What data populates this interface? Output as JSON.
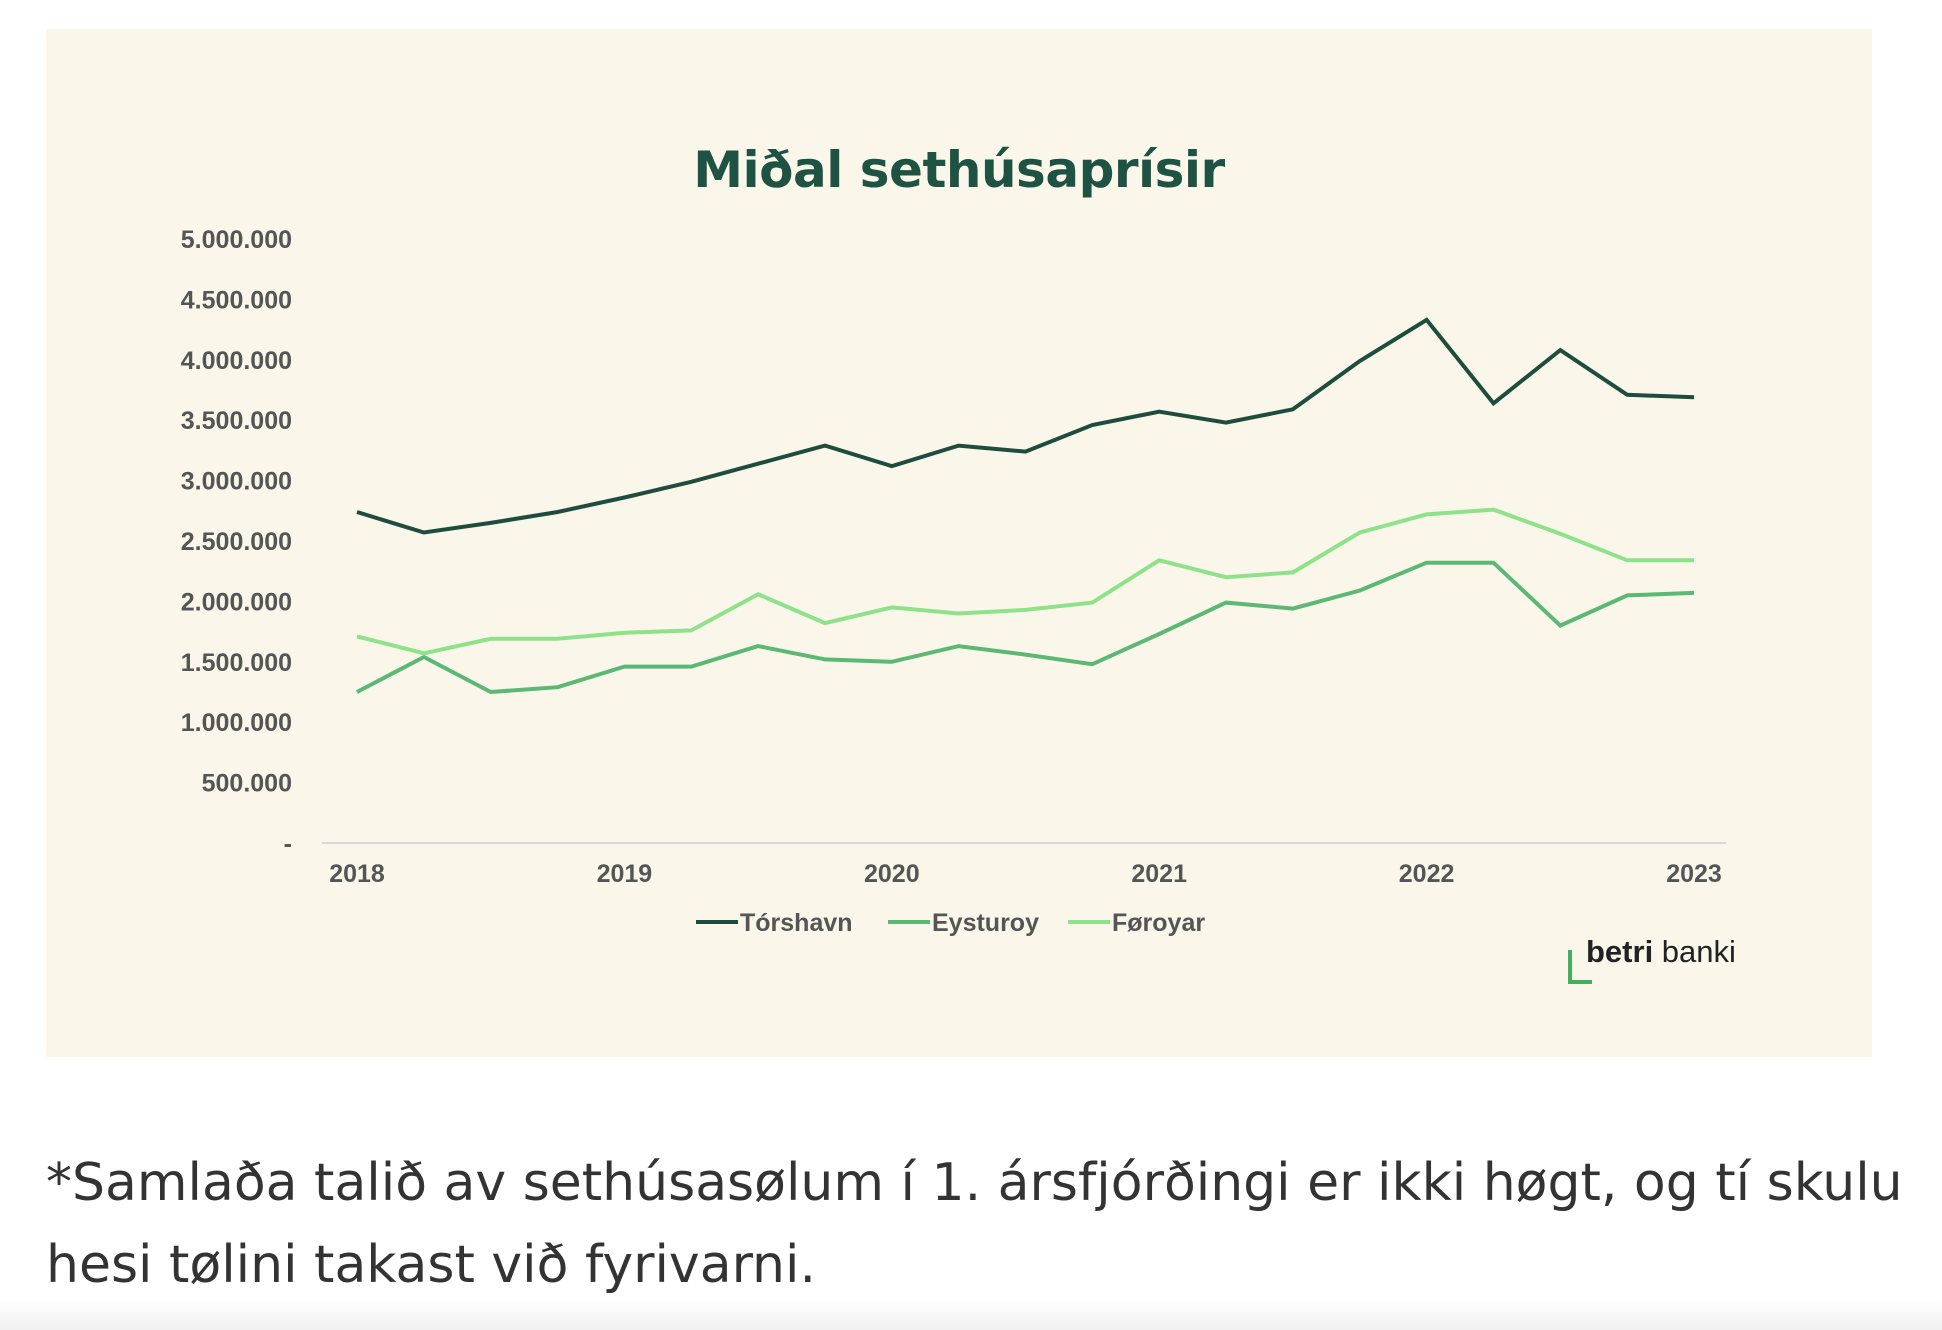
{
  "chart_data": {
    "type": "line",
    "title": "Miðal sethúsaprísir",
    "xlabel": "",
    "ylabel": "",
    "x_tick_labels": [
      "2018",
      "2019",
      "2020",
      "2021",
      "2022",
      "2023"
    ],
    "y_tick_labels": [
      "5.000.000",
      "4.500.000",
      "4.000.000",
      "3.500.000",
      "3.000.000",
      "2.500.000",
      "2.000.000",
      "1.500.000",
      "1.000.000",
      "500.000",
      "-"
    ],
    "ylim": [
      0,
      5000000
    ],
    "x_periods": [
      "2018 Q1",
      "2018 Q2",
      "2018 Q3",
      "2018 Q4",
      "2019 Q1",
      "2019 Q2",
      "2019 Q3",
      "2019 Q4",
      "2020 Q1",
      "2020 Q2",
      "2020 Q3",
      "2020 Q4",
      "2021 Q1",
      "2021 Q2",
      "2021 Q3",
      "2021 Q4",
      "2022 Q1",
      "2022 Q2",
      "2022 Q3",
      "2022 Q4",
      "2023 Q1"
    ],
    "grid": false,
    "legend_position": "bottom",
    "series": [
      {
        "name": "Tórshavn",
        "color": "#1e4d3d",
        "values": [
          2740000,
          2570000,
          2650000,
          2740000,
          2860000,
          2990000,
          3140000,
          3290000,
          3120000,
          3290000,
          3240000,
          3460000,
          3570000,
          3480000,
          3590000,
          3990000,
          4330000,
          3640000,
          4080000,
          3710000,
          3690000
        ]
      },
      {
        "name": "Eysturoy",
        "color": "#5cb875",
        "values": [
          1250000,
          1540000,
          1250000,
          1290000,
          1460000,
          1460000,
          1630000,
          1520000,
          1500000,
          1630000,
          1560000,
          1480000,
          1730000,
          1990000,
          1940000,
          2090000,
          2320000,
          2320000,
          1800000,
          2050000,
          2070000
        ]
      },
      {
        "name": "Føroyar",
        "color": "#8ee38a",
        "values": [
          1710000,
          1570000,
          1690000,
          1690000,
          1740000,
          1760000,
          2060000,
          1820000,
          1950000,
          1900000,
          1930000,
          1990000,
          2340000,
          2200000,
          2240000,
          2570000,
          2720000,
          2760000,
          2560000,
          2340000,
          2340000
        ]
      }
    ]
  },
  "logo": {
    "bold": "betri",
    "rest": " banki"
  },
  "footnote": "*Samlaða talið av sethúsasølum í 1. ársfjórðingi er ikki høgt, og tí skulu hesi tølini takast við fyrivarni."
}
